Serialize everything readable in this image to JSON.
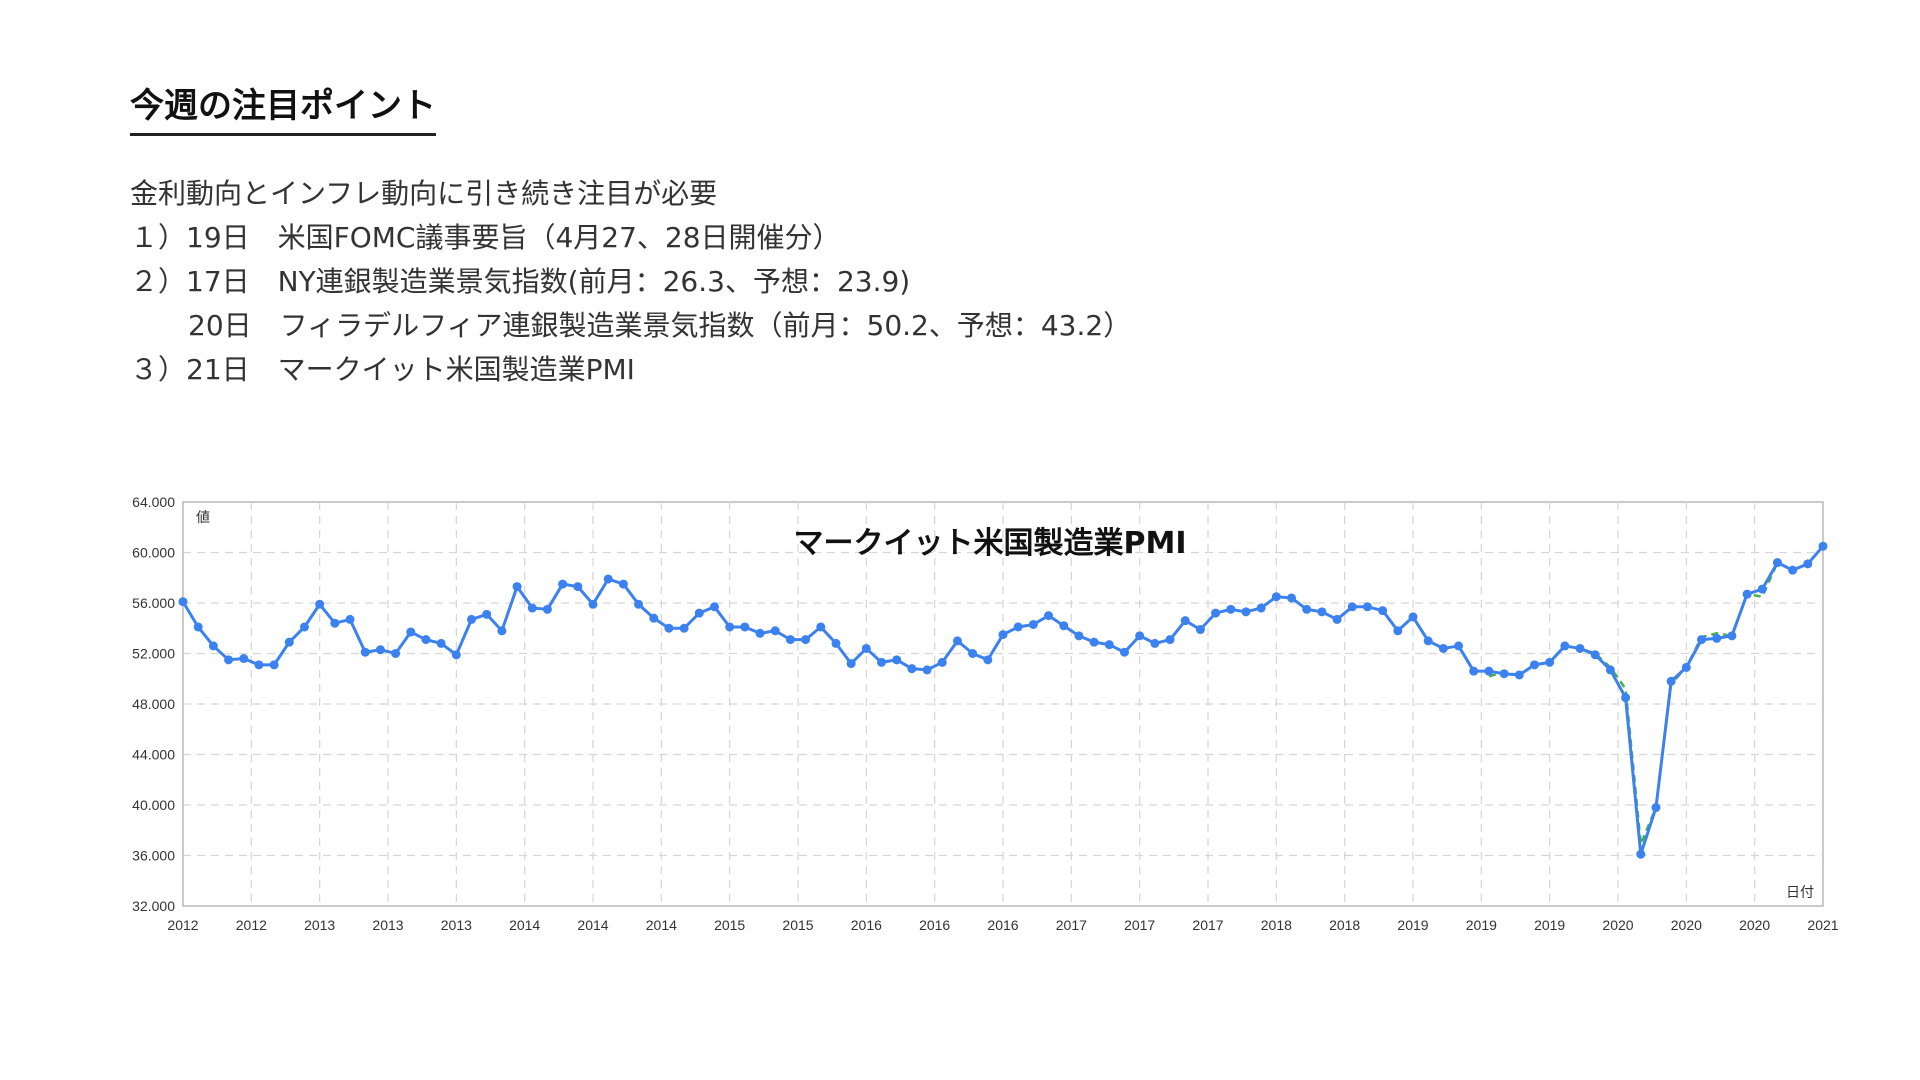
{
  "heading": "今週の注目ポイント",
  "lines": [
    "金利動向とインフレ動向に引き続き注目が必要",
    "１）19日　米国FOMC議事要旨（4月27、28日開催分）",
    "２）17日　NY連銀製造業景気指数(前月：26.3、予想：23.9)",
    "20日　フィラデルフィア連銀製造業景気指数（前月：50.2、予想：43.2）",
    "３）21日　マークイット米国製造業PMI"
  ],
  "chart_data": {
    "type": "line",
    "title": "マークイット米国製造業PMI",
    "ylabel": "値",
    "xlabel": "日付",
    "ylim": [
      32,
      64
    ],
    "yticks": [
      "64.000",
      "60.000",
      "56.000",
      "52.000",
      "48.000",
      "44.000",
      "40.000",
      "36.000",
      "32.000"
    ],
    "xticks": [
      "2012",
      "2012",
      "2013",
      "2013",
      "2013",
      "2014",
      "2014",
      "2014",
      "2015",
      "2015",
      "2016",
      "2016",
      "2016",
      "2017",
      "2017",
      "2017",
      "2018",
      "2018",
      "2019",
      "2019",
      "2019",
      "2020",
      "2020",
      "2020",
      "2021"
    ],
    "grid": true,
    "colors": {
      "main": "#3b82f0",
      "secondary": "#4caf50"
    },
    "series": [
      {
        "values": [
          56.1,
          54.1,
          52.6,
          51.5,
          51.6,
          51.1,
          51.1,
          52.9,
          54.1,
          55.9,
          54.4,
          54.7,
          52.1,
          52.3,
          52.0,
          53.7,
          53.1,
          52.8,
          51.9,
          54.7,
          55.1,
          53.8,
          57.3,
          55.6,
          55.5,
          57.5,
          57.3,
          55.9,
          57.9,
          57.5,
          55.9,
          54.8,
          54.0,
          54.0,
          55.2,
          55.7,
          54.1,
          54.1,
          53.6,
          53.8,
          53.1,
          53.1,
          54.1,
          52.8,
          51.2,
          52.4,
          51.3,
          51.5,
          50.8,
          50.7,
          51.3,
          53.0,
          52.0,
          51.5,
          53.5,
          54.1,
          54.3,
          55.0,
          54.2,
          53.4,
          52.9,
          52.7,
          52.1,
          53.4,
          52.8,
          53.1,
          54.6,
          53.9,
          55.2,
          55.5,
          55.3,
          55.6,
          56.5,
          56.4,
          55.5,
          55.3,
          54.7,
          55.7,
          55.7,
          55.4,
          53.8,
          54.9,
          53.0,
          52.4,
          52.6,
          50.6,
          50.6,
          50.4,
          50.3,
          51.1,
          51.3,
          52.6,
          52.4,
          51.9,
          50.7,
          48.5,
          36.1,
          39.8,
          49.8,
          50.9,
          53.1,
          53.2,
          53.4,
          56.7,
          57.1,
          59.2,
          58.6,
          59.1,
          60.5
        ]
      },
      {
        "values": [
          50.2,
          50.5,
          50.3,
          51.1,
          51.3,
          52.6,
          52.4,
          52.0,
          50.9,
          49.2,
          36.9,
          39.8,
          49.6,
          50.9,
          53.3,
          53.6,
          53.4,
          56.7,
          56.5,
          59.2,
          58.6,
          59.1,
          60.5
        ]
      }
    ]
  }
}
